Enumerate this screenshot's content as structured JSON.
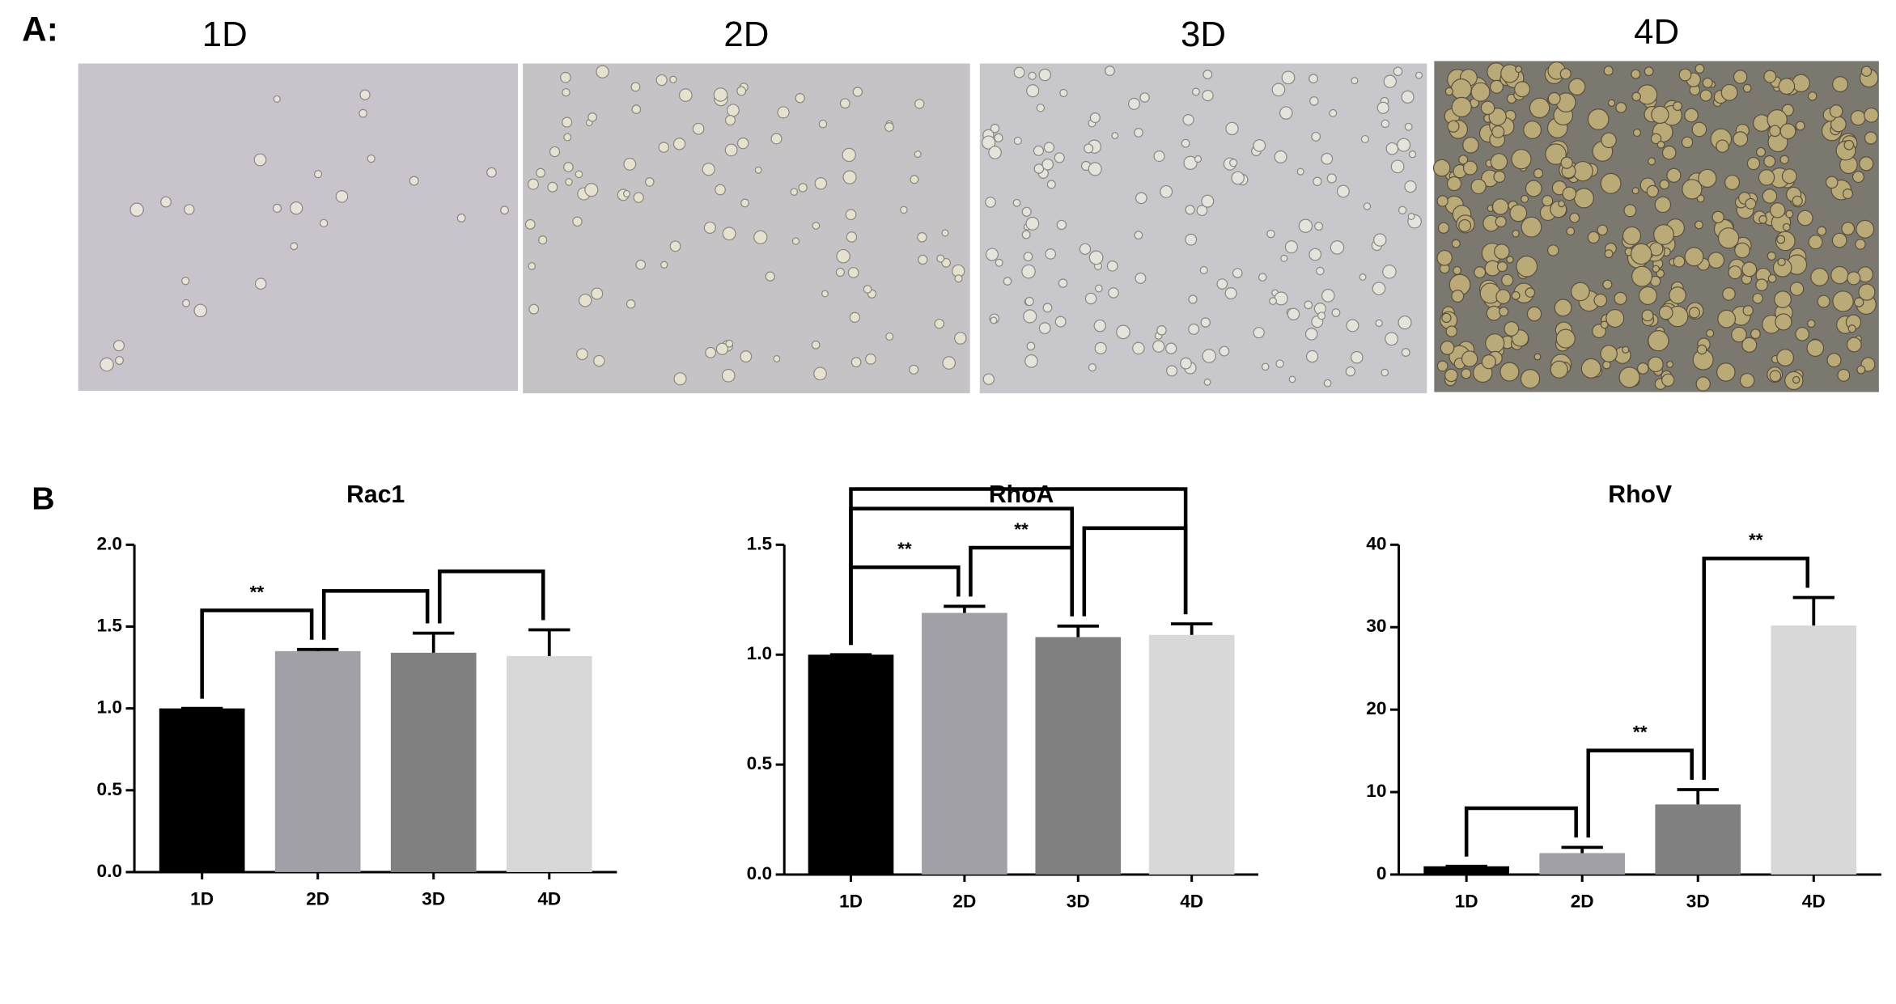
{
  "panel_a": {
    "label": "A:",
    "images": [
      "1D",
      "2D",
      "3D",
      "4D"
    ]
  },
  "panel_b_label": "B",
  "chart_data": [
    {
      "type": "bar",
      "title": "Rac1",
      "categories": [
        "1D",
        "2D",
        "3D",
        "4D"
      ],
      "values": [
        1.0,
        1.35,
        1.34,
        1.32
      ],
      "errors": [
        0,
        0.01,
        0.12,
        0.16
      ],
      "colors": [
        "#000000",
        "#a0a0a6",
        "#808080",
        "#d8d8d8"
      ],
      "ylim": [
        0,
        2
      ],
      "yticks": [
        {
          "value": 0,
          "label": "0.0"
        },
        {
          "value": 0.5,
          "label": "0.5"
        },
        {
          "value": 1,
          "label": "1.0"
        },
        {
          "value": 1.5,
          "label": "1.5"
        },
        {
          "value": 2,
          "label": "2.0"
        }
      ],
      "comparisons": [
        {
          "pair": [
            0,
            1
          ],
          "label": "**"
        },
        {
          "pair": [
            1,
            2
          ]
        },
        {
          "pair": [
            2,
            3
          ]
        }
      ]
    },
    {
      "type": "bar",
      "title": "RhoA",
      "categories": [
        "1D",
        "2D",
        "3D",
        "4D"
      ],
      "values": [
        1.0,
        1.19,
        1.08,
        1.09
      ],
      "errors": [
        0,
        0.03,
        0.05,
        0.05
      ],
      "colors": [
        "#000000",
        "#a0a0a6",
        "#808080",
        "#d8d8d8"
      ],
      "ylim": [
        0,
        1.5
      ],
      "yticks": [
        {
          "value": 0,
          "label": "0.0"
        },
        {
          "value": 0.5,
          "label": "0.5"
        },
        {
          "value": 1,
          "label": "1.0"
        },
        {
          "value": 1.5,
          "label": "1.5"
        }
      ],
      "comparisons": [
        {
          "pair": [
            0,
            1
          ],
          "label": "**"
        },
        {
          "pair": [
            1,
            2
          ],
          "label": "**"
        },
        {
          "pair": [
            2,
            3
          ]
        },
        {
          "pair": [
            0,
            2
          ]
        },
        {
          "pair": [
            0,
            3
          ]
        }
      ]
    },
    {
      "type": "bar",
      "title": "RhoV",
      "categories": [
        "1D",
        "2D",
        "3D",
        "4D"
      ],
      "values": [
        1,
        2.6,
        8.5,
        30.2
      ],
      "errors": [
        0,
        0.7,
        1.8,
        3.4
      ],
      "colors": [
        "#000000",
        "#a0a0a6",
        "#808080",
        "#d8d8d8"
      ],
      "ylim": [
        0,
        40
      ],
      "yticks": [
        0,
        10,
        20,
        30,
        40
      ],
      "comparisons": [
        {
          "pair": [
            0,
            1
          ]
        },
        {
          "pair": [
            1,
            2
          ],
          "label": "**"
        },
        {
          "pair": [
            2,
            3
          ],
          "label": "**"
        }
      ]
    }
  ]
}
